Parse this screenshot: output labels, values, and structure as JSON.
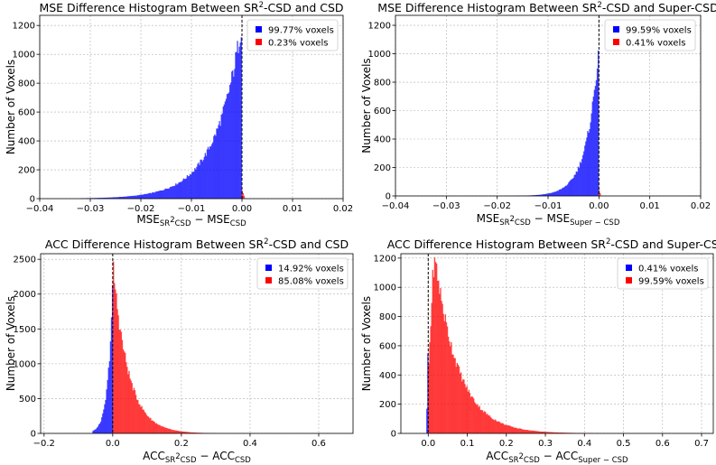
{
  "colors": {
    "blue": "#0000ff",
    "red": "#ff0000",
    "grid": "#b0b0b0"
  },
  "chart_data": [
    {
      "type": "histogram",
      "title": {
        "pre": "MSE Difference Histogram Between SR",
        "sup": "2",
        "post": "-CSD and CSD"
      },
      "xlabel": [
        {
          "t": "MSE"
        },
        {
          "t": "SR",
          "sub": true
        },
        {
          "t": "2",
          "sub2": true
        },
        {
          "t": "CSD",
          "sub": true
        },
        {
          "t": " − MSE"
        },
        {
          "t": "CSD",
          "sub": true
        }
      ],
      "ylabel": "Number of Voxels",
      "xlim": [
        -0.04,
        0.02
      ],
      "ylim": [
        0,
        1270
      ],
      "xticks": [
        -0.04,
        -0.03,
        -0.02,
        -0.01,
        0.0,
        0.01,
        0.02
      ],
      "xtick_labels": [
        "−0.04",
        "−0.03",
        "−0.02",
        "−0.01",
        "0.00",
        "0.01",
        "0.02"
      ],
      "yticks": [
        0,
        200,
        400,
        600,
        800,
        1000,
        1200
      ],
      "ytick_labels": [
        "0",
        "200",
        "400",
        "600",
        "800",
        "1000",
        "1200"
      ],
      "dist": {
        "side": "left",
        "peak": 1230,
        "decay": 0.0052,
        "start": 0.0,
        "extent": 0.032,
        "rise": 0,
        "spill": 0.0006,
        "spill_peak": 60
      },
      "legend": [
        {
          "label": "99.77% voxels",
          "color": "blue"
        },
        {
          "label": "0.23% voxels",
          "color": "red"
        }
      ],
      "legend_loc": "top-right",
      "series": [
        {
          "name": "99.77% voxels",
          "share_percent": 99.77
        },
        {
          "name": "0.23% voxels",
          "share_percent": 0.23
        }
      ],
      "vline": 0.0
    },
    {
      "type": "histogram",
      "title": {
        "pre": "MSE Difference Histogram Between SR",
        "sup": "2",
        "post": "-CSD and Super-CSD"
      },
      "xlabel": [
        {
          "t": "MSE"
        },
        {
          "t": "SR",
          "sub": true
        },
        {
          "t": "2",
          "sub2": true
        },
        {
          "t": "CSD",
          "sub": true
        },
        {
          "t": " − MSE"
        },
        {
          "t": "Super − CSD",
          "sub": true
        }
      ],
      "ylabel": "Number of Voxels",
      "xlim": [
        -0.04,
        0.02
      ],
      "ylim": [
        0,
        1270
      ],
      "xticks": [
        -0.04,
        -0.03,
        -0.02,
        -0.01,
        0.0,
        0.01,
        0.02
      ],
      "xtick_labels": [
        "−0.04",
        "−0.03",
        "−0.02",
        "−0.01",
        "0.00",
        "0.01",
        "0.02"
      ],
      "yticks": [
        0,
        200,
        400,
        600,
        800,
        1000,
        1200
      ],
      "ytick_labels": [
        "0",
        "200",
        "400",
        "600",
        "800",
        "1000",
        "1200"
      ],
      "dist": {
        "side": "left",
        "peak": 1080,
        "decay": 0.0024,
        "start": 0.0,
        "extent": 0.018,
        "rise": 0,
        "spill": 0.0004,
        "spill_peak": 40
      },
      "legend": [
        {
          "label": "99.59% voxels",
          "color": "blue"
        },
        {
          "label": "0.41% voxels",
          "color": "red"
        }
      ],
      "legend_loc": "top-right",
      "series": [
        {
          "name": "99.59% voxels",
          "share_percent": 99.59
        },
        {
          "name": "0.41% voxels",
          "share_percent": 0.41
        }
      ],
      "vline": 0.0
    },
    {
      "type": "histogram",
      "title": {
        "pre": "ACC Difference Histogram Between SR",
        "sup": "2",
        "post": "-CSD and CSD"
      },
      "xlabel": [
        {
          "t": "ACC"
        },
        {
          "t": "SR",
          "sub": true
        },
        {
          "t": "2",
          "sub2": true
        },
        {
          "t": "CSD",
          "sub": true
        },
        {
          "t": " − ACC"
        },
        {
          "t": "CSD",
          "sub": true
        }
      ],
      "ylabel": "Number of Voxels",
      "xlim": [
        -0.21,
        0.7
      ],
      "ylim": [
        0,
        2580
      ],
      "xticks": [
        -0.2,
        0.0,
        0.2,
        0.4,
        0.6
      ],
      "xtick_labels": [
        "−0.2",
        "0.0",
        "0.2",
        "0.4",
        "0.6"
      ],
      "yticks": [
        0,
        500,
        1000,
        1500,
        2000,
        2500
      ],
      "ytick_labels": [
        "0",
        "500",
        "1000",
        "1500",
        "2000",
        "2500"
      ],
      "dist": {
        "side": "right",
        "peak": 2430,
        "decay": 0.045,
        "start": 0.0,
        "extent": 0.3,
        "rise": 0.0,
        "left_extent": 0.06,
        "left_decay": 0.014
      },
      "legend": [
        {
          "label": "14.92% voxels",
          "color": "blue"
        },
        {
          "label": "85.08% voxels",
          "color": "red"
        }
      ],
      "legend_loc": "top-right",
      "series": [
        {
          "name": "14.92% voxels",
          "share_percent": 14.92
        },
        {
          "name": "85.08% voxels",
          "share_percent": 85.08
        }
      ],
      "vline": 0.0
    },
    {
      "type": "histogram",
      "title": {
        "pre": "ACC Difference Histogram Between SR",
        "sup": "2",
        "post": "-CSD and Super-CSD"
      },
      "xlabel": [
        {
          "t": "ACC"
        },
        {
          "t": "SR",
          "sub": true
        },
        {
          "t": "2",
          "sub2": true
        },
        {
          "t": "CSD",
          "sub": true
        },
        {
          "t": " − ACC"
        },
        {
          "t": "Super − CSD",
          "sub": true
        }
      ],
      "ylabel": "Number of Voxels",
      "xlim": [
        -0.07,
        0.73
      ],
      "ylim": [
        0,
        1230
      ],
      "xticks": [
        0.0,
        0.1,
        0.2,
        0.3,
        0.4,
        0.5,
        0.6,
        0.7
      ],
      "xtick_labels": [
        "0.0",
        "0.1",
        "0.2",
        "0.3",
        "0.4",
        "0.5",
        "0.6",
        "0.7"
      ],
      "yticks": [
        0,
        200,
        400,
        600,
        800,
        1000,
        1200
      ],
      "ytick_labels": [
        "0",
        "200",
        "400",
        "600",
        "800",
        "1000",
        "1200"
      ],
      "dist": {
        "side": "right",
        "peak": 1150,
        "decay": 0.06,
        "start": 0.0,
        "extent": 0.42,
        "rise": 0.02,
        "left_extent": 0.006,
        "left_decay": 0.002
      },
      "legend": [
        {
          "label": "0.41% voxels",
          "color": "blue"
        },
        {
          "label": "99.59% voxels",
          "color": "red"
        }
      ],
      "legend_loc": "top-right",
      "series": [
        {
          "name": "0.41% voxels",
          "share_percent": 0.41
        },
        {
          "name": "99.59% voxels",
          "share_percent": 99.59
        }
      ],
      "vline": 0.0
    }
  ]
}
